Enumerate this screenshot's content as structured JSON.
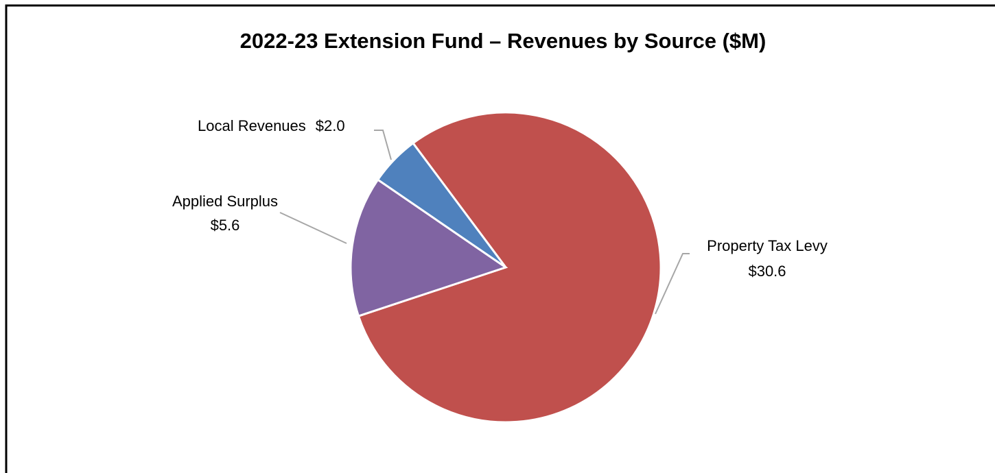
{
  "chart_data": {
    "type": "pie",
    "title": "2022-23 Extension Fund – Revenues by Source ($M)",
    "categories": [
      "Property Tax Levy",
      "Applied Surplus",
      "Local Revenues"
    ],
    "values": [
      30.6,
      5.6,
      2.0
    ],
    "value_labels": [
      "$30.6",
      "$5.6",
      "$2.0"
    ],
    "colors": [
      "#c0504d",
      "#8064a2",
      "#4f81bd"
    ]
  }
}
